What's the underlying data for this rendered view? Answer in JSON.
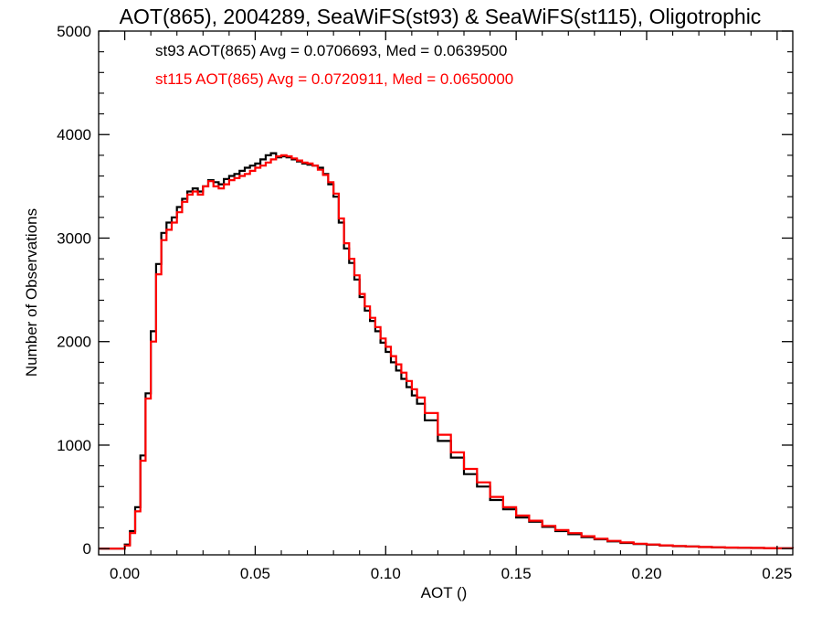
{
  "chart_data": {
    "type": "line",
    "step": true,
    "title": "AOT(865), 2004289, SeaWiFS(st93) & SeaWiFS(st115), Oligotrophic",
    "xlabel": "AOT ()",
    "ylabel": "Number of Observations",
    "xlim": [
      -0.01,
      0.256
    ],
    "ylim": [
      -60,
      5000
    ],
    "xticks": [
      0.0,
      0.05,
      0.1,
      0.15,
      0.2,
      0.25
    ],
    "xtick_labels": [
      "0.00",
      "0.05",
      "0.10",
      "0.15",
      "0.20",
      "0.25"
    ],
    "yticks": [
      0,
      1000,
      2000,
      3000,
      4000,
      5000
    ],
    "ytick_labels": [
      "0",
      "1000",
      "2000",
      "3000",
      "4000",
      "5000"
    ],
    "grid": false,
    "legend_position": "top-left",
    "series": [
      {
        "name": "st93 AOT(865) Avg = 0.0706693, Med = 0.0639500",
        "color": "#000000",
        "x": [
          -0.01,
          -0.001,
          0.0,
          0.002,
          0.004,
          0.006,
          0.008,
          0.01,
          0.012,
          0.014,
          0.016,
          0.018,
          0.02,
          0.022,
          0.024,
          0.026,
          0.028,
          0.03,
          0.032,
          0.034,
          0.036,
          0.038,
          0.04,
          0.042,
          0.044,
          0.046,
          0.048,
          0.05,
          0.052,
          0.054,
          0.056,
          0.058,
          0.06,
          0.062,
          0.064,
          0.066,
          0.068,
          0.07,
          0.072,
          0.074,
          0.076,
          0.078,
          0.08,
          0.082,
          0.084,
          0.086,
          0.088,
          0.09,
          0.092,
          0.094,
          0.096,
          0.098,
          0.1,
          0.102,
          0.104,
          0.106,
          0.108,
          0.11,
          0.112,
          0.115,
          0.12,
          0.125,
          0.13,
          0.135,
          0.14,
          0.145,
          0.15,
          0.155,
          0.16,
          0.165,
          0.17,
          0.175,
          0.18,
          0.185,
          0.19,
          0.195,
          0.2,
          0.205,
          0.21,
          0.215,
          0.22,
          0.225,
          0.23,
          0.235,
          0.24,
          0.245,
          0.25,
          0.256
        ],
        "y": [
          0,
          0,
          40,
          170,
          400,
          900,
          1500,
          2100,
          2750,
          3050,
          3150,
          3200,
          3300,
          3380,
          3450,
          3480,
          3450,
          3500,
          3560,
          3540,
          3520,
          3570,
          3600,
          3620,
          3650,
          3680,
          3700,
          3720,
          3760,
          3800,
          3820,
          3780,
          3790,
          3780,
          3760,
          3740,
          3720,
          3710,
          3700,
          3680,
          3620,
          3520,
          3400,
          3150,
          2900,
          2760,
          2600,
          2430,
          2300,
          2200,
          2100,
          1990,
          1900,
          1800,
          1720,
          1640,
          1560,
          1480,
          1400,
          1240,
          1040,
          880,
          720,
          600,
          470,
          380,
          300,
          260,
          210,
          170,
          140,
          110,
          90,
          70,
          55,
          45,
          38,
          30,
          24,
          20,
          15,
          12,
          10,
          8,
          6,
          5,
          4,
          3
        ]
      },
      {
        "name": "st115 AOT(865) Avg = 0.0720911, Med = 0.0650000",
        "color": "#ff0000",
        "x": [
          -0.01,
          -0.001,
          0.0,
          0.002,
          0.004,
          0.006,
          0.008,
          0.01,
          0.012,
          0.014,
          0.016,
          0.018,
          0.02,
          0.022,
          0.024,
          0.026,
          0.028,
          0.03,
          0.032,
          0.034,
          0.036,
          0.038,
          0.04,
          0.042,
          0.044,
          0.046,
          0.048,
          0.05,
          0.052,
          0.054,
          0.056,
          0.058,
          0.06,
          0.062,
          0.064,
          0.066,
          0.068,
          0.07,
          0.072,
          0.074,
          0.076,
          0.078,
          0.08,
          0.082,
          0.084,
          0.086,
          0.088,
          0.09,
          0.092,
          0.094,
          0.096,
          0.098,
          0.1,
          0.102,
          0.104,
          0.106,
          0.108,
          0.11,
          0.112,
          0.115,
          0.12,
          0.125,
          0.13,
          0.135,
          0.14,
          0.145,
          0.15,
          0.155,
          0.16,
          0.165,
          0.17,
          0.175,
          0.18,
          0.185,
          0.19,
          0.195,
          0.2,
          0.205,
          0.21,
          0.215,
          0.22,
          0.225,
          0.23,
          0.235,
          0.24,
          0.245,
          0.25,
          0.256
        ],
        "y": [
          0,
          0,
          30,
          150,
          360,
          850,
          1450,
          2000,
          2650,
          2980,
          3080,
          3150,
          3250,
          3350,
          3420,
          3450,
          3420,
          3500,
          3550,
          3500,
          3480,
          3520,
          3560,
          3580,
          3600,
          3620,
          3650,
          3680,
          3700,
          3730,
          3760,
          3790,
          3800,
          3790,
          3770,
          3750,
          3730,
          3720,
          3700,
          3660,
          3610,
          3540,
          3430,
          3190,
          2950,
          2800,
          2640,
          2460,
          2340,
          2230,
          2140,
          2030,
          1950,
          1860,
          1780,
          1700,
          1620,
          1540,
          1460,
          1310,
          1100,
          930,
          770,
          640,
          500,
          400,
          320,
          270,
          220,
          180,
          150,
          120,
          95,
          75,
          60,
          48,
          40,
          32,
          26,
          21,
          16,
          13,
          11,
          9,
          7,
          5,
          4,
          3
        ]
      }
    ]
  }
}
